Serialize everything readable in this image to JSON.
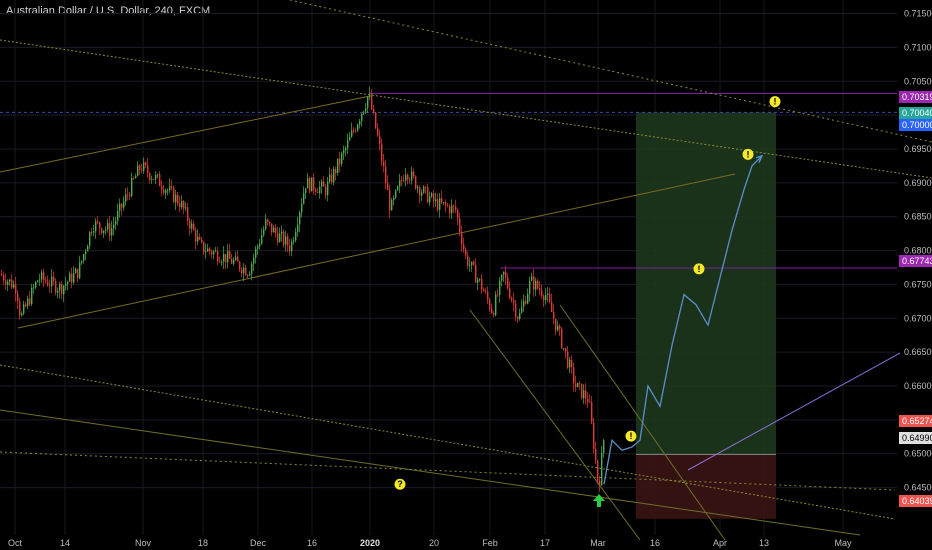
{
  "header": {
    "title": "Australian Dollar / U.S. Dollar, 240, FXCM"
  },
  "chart_data": {
    "type": "candlestick",
    "symbol": "AUDUSD",
    "interval": "240",
    "ylim": [
      0.638,
      0.717
    ],
    "y_ticks": [
      "0.71500",
      "0.71000",
      "0.70500",
      "0.70000",
      "0.69500",
      "0.69000",
      "0.68500",
      "0.68000",
      "0.67500",
      "0.67000",
      "0.66500",
      "0.66000",
      "0.65500",
      "0.65000",
      "0.64500"
    ],
    "x_ticks": [
      {
        "label": "Oct",
        "bold": false
      },
      {
        "label": "14",
        "bold": false
      },
      {
        "label": "Nov",
        "bold": false
      },
      {
        "label": "18",
        "bold": false
      },
      {
        "label": "Dec",
        "bold": false
      },
      {
        "label": "16",
        "bold": false
      },
      {
        "label": "2020",
        "bold": true
      },
      {
        "label": "20",
        "bold": false
      },
      {
        "label": "Feb",
        "bold": false
      },
      {
        "label": "17",
        "bold": false
      },
      {
        "label": "Mar",
        "bold": false
      },
      {
        "label": "16",
        "bold": false
      },
      {
        "label": "Apr",
        "bold": false
      },
      {
        "label": "13",
        "bold": false
      },
      {
        "label": "May",
        "bold": false
      }
    ],
    "price_path": [
      [
        0,
        0.6765
      ],
      [
        16,
        0.6745
      ],
      [
        20,
        0.67
      ],
      [
        38,
        0.676
      ],
      [
        60,
        0.6745
      ],
      [
        78,
        0.677
      ],
      [
        92,
        0.684
      ],
      [
        110,
        0.683
      ],
      [
        140,
        0.6925
      ],
      [
        160,
        0.69
      ],
      [
        180,
        0.687
      ],
      [
        200,
        0.6805
      ],
      [
        225,
        0.679
      ],
      [
        248,
        0.677
      ],
      [
        265,
        0.684
      ],
      [
        290,
        0.6805
      ],
      [
        305,
        0.69
      ],
      [
        325,
        0.689
      ],
      [
        345,
        0.695
      ],
      [
        368,
        0.703
      ],
      [
        378,
        0.696
      ],
      [
        390,
        0.686
      ],
      [
        405,
        0.692
      ],
      [
        420,
        0.689
      ],
      [
        435,
        0.687
      ],
      [
        455,
        0.686
      ],
      [
        465,
        0.679
      ],
      [
        480,
        0.675
      ],
      [
        492,
        0.671
      ],
      [
        503,
        0.6765
      ],
      [
        518,
        0.67
      ],
      [
        530,
        0.6755
      ],
      [
        545,
        0.6735
      ],
      [
        560,
        0.667
      ],
      [
        575,
        0.66
      ],
      [
        588,
        0.658
      ],
      [
        598,
        0.645
      ],
      [
        604,
        0.6535
      ]
    ],
    "levels": [
      {
        "value": "0.70319",
        "price": 0.70319,
        "color": "#9c27b0"
      },
      {
        "value": "0.70040",
        "price": 0.7004,
        "color": "#26a69a"
      },
      {
        "value": "0.70000",
        "price": 0.7,
        "color": "#2962ff"
      },
      {
        "value": "0.67743",
        "price": 0.67743,
        "color": "#9c27b0"
      },
      {
        "value": "0.65274",
        "price": 0.65274,
        "color": "#ef5350"
      },
      {
        "value": "0.64990",
        "price": 0.6499,
        "color": "#e0e0e0"
      },
      {
        "value": "0.64039",
        "price": 0.64039,
        "color": "#ef5350"
      }
    ],
    "position": {
      "entry": 0.6499,
      "stop": 0.64039,
      "target": 0.7004
    },
    "projection_path": [
      [
        604,
        0.6455
      ],
      [
        612,
        0.652
      ],
      [
        622,
        0.6505
      ],
      [
        632,
        0.651
      ],
      [
        640,
        0.652
      ],
      [
        648,
        0.66
      ],
      [
        660,
        0.657
      ],
      [
        672,
        0.666
      ],
      [
        684,
        0.6735
      ],
      [
        696,
        0.672
      ],
      [
        708,
        0.669
      ],
      [
        720,
        0.676
      ],
      [
        732,
        0.683
      ],
      [
        744,
        0.689
      ],
      [
        752,
        0.6925
      ],
      [
        762,
        0.694
      ]
    ],
    "markers": [
      {
        "symbol": "!",
        "price": 0.702
      },
      {
        "symbol": "!",
        "price": 0.6942
      },
      {
        "symbol": "!",
        "price": 0.6773
      },
      {
        "symbol": "!",
        "price": 0.6526
      },
      {
        "symbol": "?",
        "price": 0.6455
      }
    ]
  }
}
